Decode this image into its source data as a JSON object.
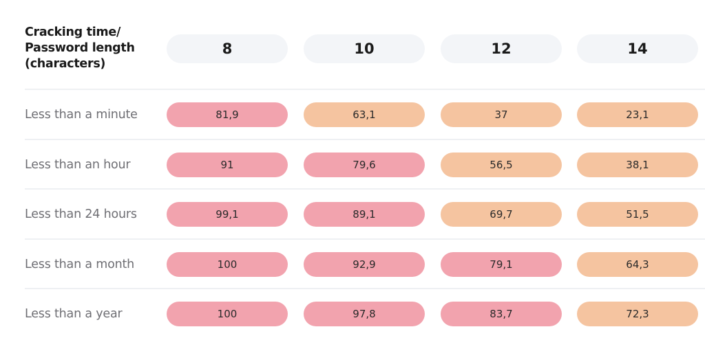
{
  "colors": {
    "pink": "#f2a3ae",
    "peach": "#f5c4a0",
    "header_pill": "#f3f5f8",
    "row_label": "#6e6e73",
    "divider": "#eef0f3"
  },
  "chart_data": {
    "type": "table",
    "corner_header": "Cracking time/\nPassword length\n(characters)",
    "columns": [
      "8",
      "10",
      "12",
      "14"
    ],
    "rows": [
      {
        "label": "Less than a minute",
        "cells": [
          {
            "value": "81,9",
            "color": "pink"
          },
          {
            "value": "63,1",
            "color": "peach"
          },
          {
            "value": "37",
            "color": "peach"
          },
          {
            "value": "23,1",
            "color": "peach"
          }
        ]
      },
      {
        "label": "Less than an hour",
        "cells": [
          {
            "value": "91",
            "color": "pink"
          },
          {
            "value": "79,6",
            "color": "pink"
          },
          {
            "value": "56,5",
            "color": "peach"
          },
          {
            "value": "38,1",
            "color": "peach"
          }
        ]
      },
      {
        "label": "Less than 24 hours",
        "cells": [
          {
            "value": "99,1",
            "color": "pink"
          },
          {
            "value": "89,1",
            "color": "pink"
          },
          {
            "value": "69,7",
            "color": "peach"
          },
          {
            "value": "51,5",
            "color": "peach"
          }
        ]
      },
      {
        "label": "Less than a month",
        "cells": [
          {
            "value": "100",
            "color": "pink"
          },
          {
            "value": "92,9",
            "color": "pink"
          },
          {
            "value": "79,1",
            "color": "pink"
          },
          {
            "value": "64,3",
            "color": "peach"
          }
        ]
      },
      {
        "label": "Less than a year",
        "cells": [
          {
            "value": "100",
            "color": "pink"
          },
          {
            "value": "97,8",
            "color": "pink"
          },
          {
            "value": "83,7",
            "color": "pink"
          },
          {
            "value": "72,3",
            "color": "peach"
          }
        ]
      }
    ]
  }
}
